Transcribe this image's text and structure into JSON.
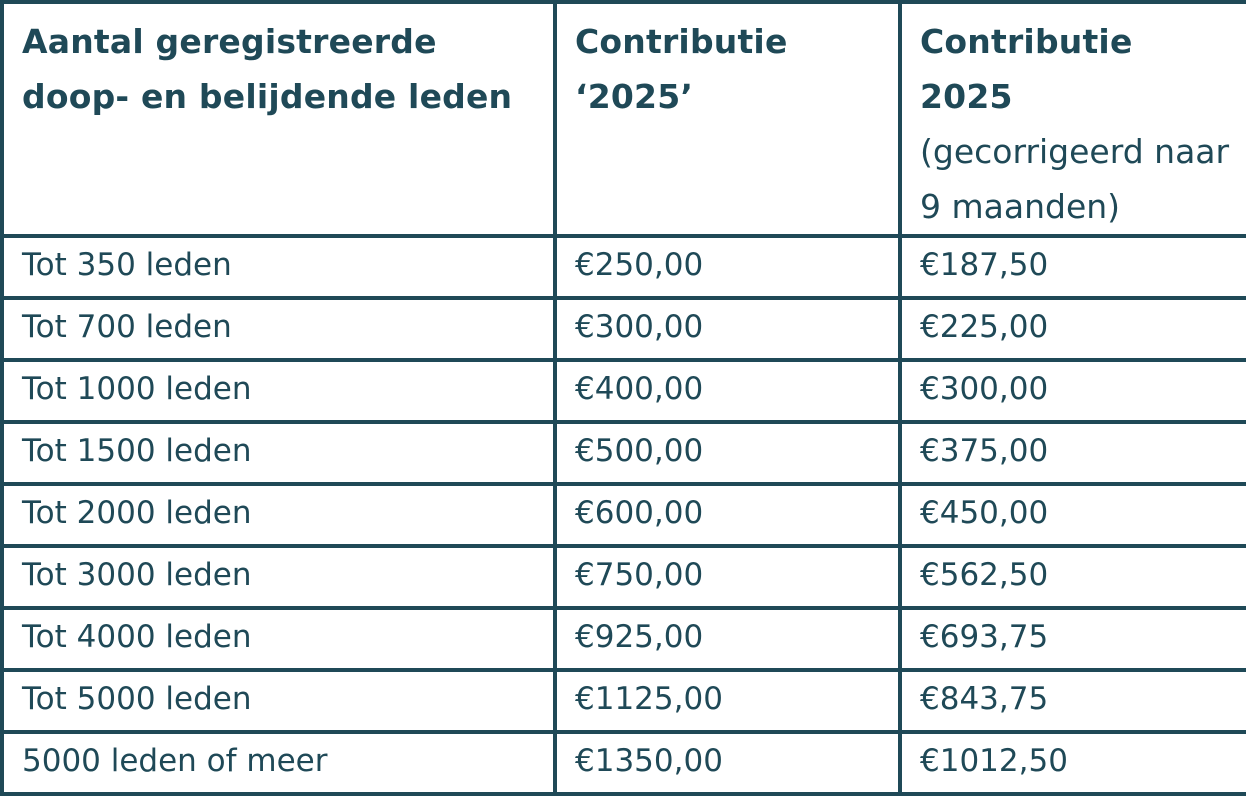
{
  "table": {
    "headers": [
      {
        "label": "Aantal geregistreerde doop- en belijdende leden",
        "note": ""
      },
      {
        "label": "Contributie ‘2025’",
        "note": ""
      },
      {
        "label": "Contributie 2025",
        "note": "(gecorrigeerd naar 9 maanden)"
      }
    ],
    "rows": [
      [
        "Tot 350 leden",
        "€250,00",
        "€187,50"
      ],
      [
        "Tot 700 leden",
        "€300,00",
        "€225,00"
      ],
      [
        "Tot 1000 leden",
        "€400,00",
        "€300,00"
      ],
      [
        "Tot 1500 leden",
        "€500,00",
        "€375,00"
      ],
      [
        "Tot 2000 leden",
        "€600,00",
        "€450,00"
      ],
      [
        "Tot 3000 leden",
        "€750,00",
        "€562,50"
      ],
      [
        "Tot 4000 leden",
        "€925,00",
        "€693,75"
      ],
      [
        "Tot 5000 leden",
        "€1125,00",
        "€843,75"
      ],
      [
        "5000 leden of meer",
        "€1350,00",
        "€1012,50"
      ]
    ]
  },
  "colors": {
    "text": "#1f4957",
    "border": "#1f4957",
    "background": "#ffffff"
  }
}
